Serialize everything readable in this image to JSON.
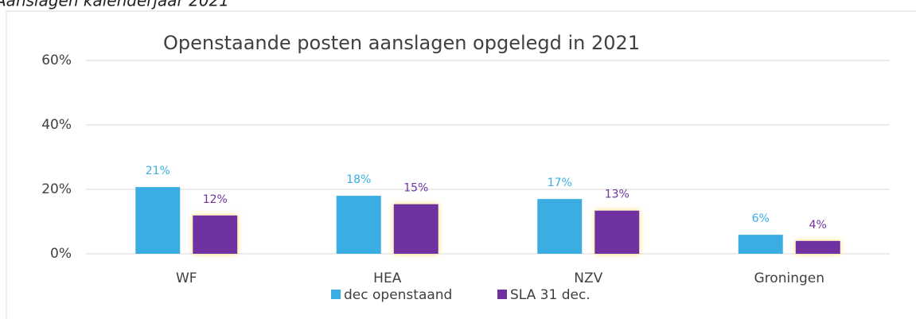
{
  "heading": "Aanslagen kalenderjaar 2021",
  "chart_data": {
    "type": "bar",
    "title": "Openstaande posten aanslagen opgelegd in 2021",
    "categories": [
      "WF",
      "HEA",
      "NZV",
      "Groningen"
    ],
    "series": [
      {
        "name": "dec openstaand",
        "color": "#3aaee3",
        "values": [
          20.7,
          18.0,
          17.0,
          5.9
        ],
        "value_labels": [
          "21%",
          "18%",
          "17%",
          "6%"
        ]
      },
      {
        "name": "SLA 31 dec.",
        "color": "#7030a0",
        "values": [
          11.9,
          15.4,
          13.4,
          4.0
        ],
        "value_labels": [
          "12%",
          "15%",
          "13%",
          "4%"
        ]
      }
    ],
    "ylim": [
      0,
      60
    ],
    "yticks": [
      {
        "value": 0,
        "label": "0%"
      },
      {
        "value": 20,
        "label": "20%"
      },
      {
        "value": 40,
        "label": "40%"
      },
      {
        "value": 60,
        "label": "60%"
      }
    ],
    "grid": true,
    "legend": "bottom"
  }
}
